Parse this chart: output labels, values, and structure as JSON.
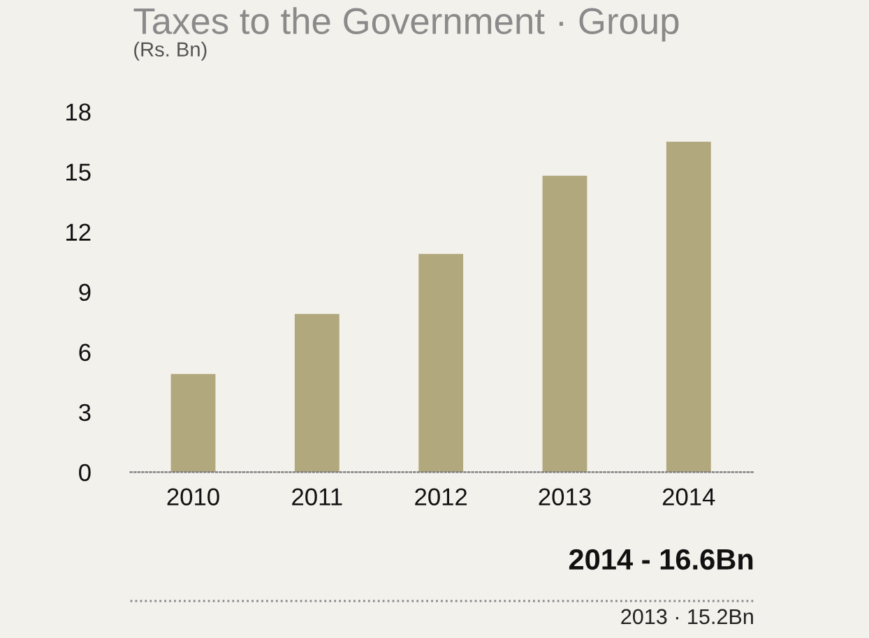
{
  "chart_data": {
    "type": "bar",
    "title": "Taxes to the Government · Group",
    "subtitle": "(Rs. Bn)",
    "categories": [
      "2010",
      "2011",
      "2012",
      "2013",
      "2014"
    ],
    "values": [
      4.9,
      7.9,
      10.9,
      14.8,
      16.5
    ],
    "color": "#b2a87d",
    "ylim": [
      0,
      18
    ],
    "yticks": [
      0,
      3,
      6,
      9,
      12,
      15,
      18
    ],
    "grid": false,
    "legend": false,
    "annotations": [
      "2014 - 16.6Bn",
      "2013 · 15.2Bn"
    ]
  }
}
